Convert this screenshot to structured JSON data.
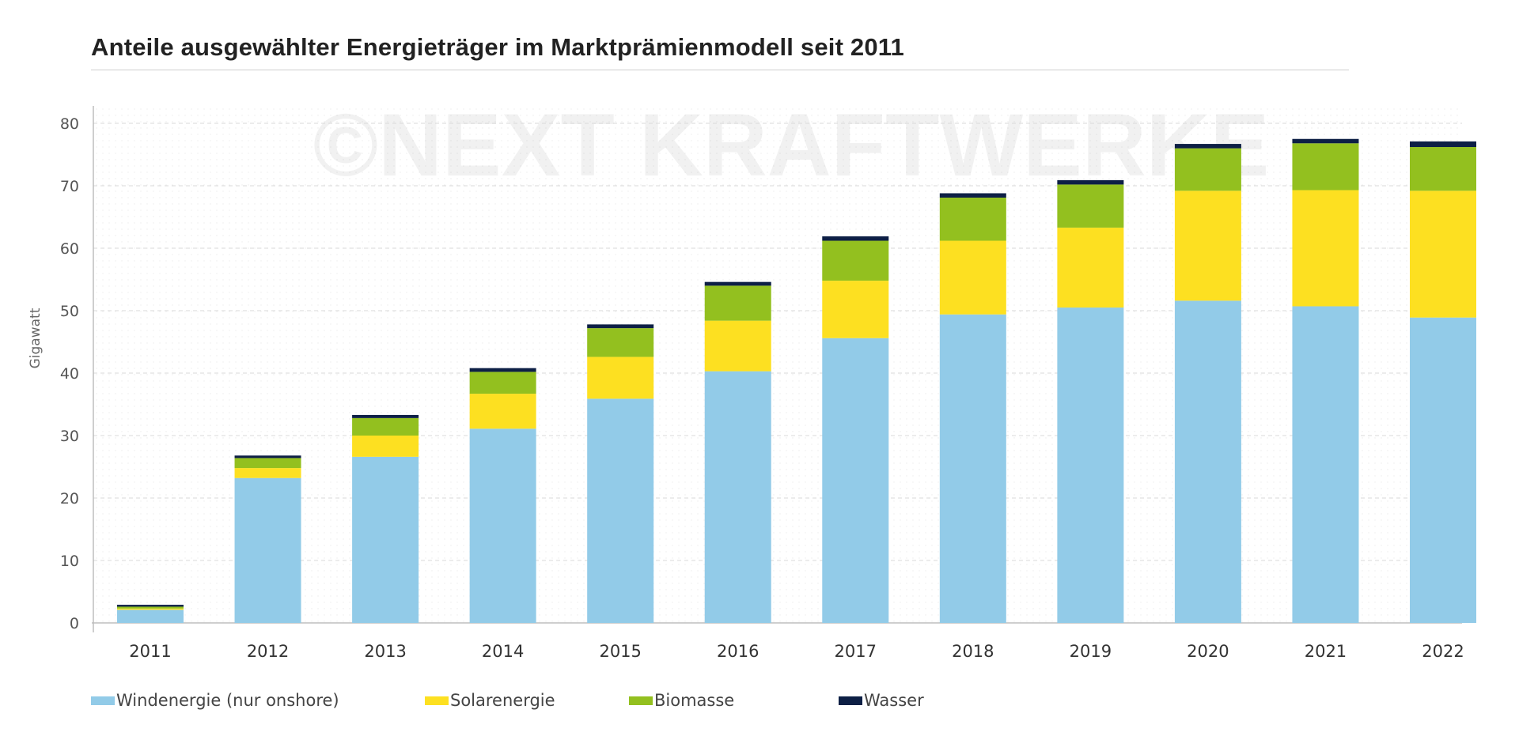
{
  "chart_data": {
    "type": "bar",
    "stacked": true,
    "title": "Anteile ausgewählter Energieträger im Marktprämienmodell seit 2011",
    "watermark": "©NEXT KRAFTWERKE",
    "ylabel": "Gigawatt",
    "xlabel": "",
    "ylim": [
      0,
      80
    ],
    "yticks": [
      0,
      10,
      20,
      30,
      40,
      50,
      60,
      70,
      80
    ],
    "grid": true,
    "legend_position": "bottom",
    "categories": [
      "2011",
      "2012",
      "2013",
      "2014",
      "2015",
      "2016",
      "2017",
      "2018",
      "2019",
      "2020",
      "2021",
      "2022"
    ],
    "series": [
      {
        "name": "Windenergie (nur onshore)",
        "color": "#92cbe8",
        "values": [
          2.1,
          23.2,
          26.6,
          31.1,
          35.9,
          40.3,
          45.6,
          49.4,
          50.5,
          51.6,
          50.7,
          48.9
        ]
      },
      {
        "name": "Solarenergie",
        "color": "#fde021",
        "values": [
          0.2,
          1.6,
          3.4,
          5.6,
          6.7,
          8.1,
          9.2,
          11.8,
          12.8,
          17.6,
          18.6,
          20.3
        ]
      },
      {
        "name": "Biomasse",
        "color": "#93c01f",
        "values": [
          0.3,
          1.6,
          2.8,
          3.5,
          4.6,
          5.6,
          6.4,
          6.9,
          6.9,
          6.8,
          7.5,
          7.0
        ]
      },
      {
        "name": "Wasser",
        "color": "#0d1f45",
        "values": [
          0.3,
          0.4,
          0.5,
          0.6,
          0.6,
          0.6,
          0.7,
          0.7,
          0.7,
          0.7,
          0.7,
          0.9
        ]
      }
    ]
  }
}
